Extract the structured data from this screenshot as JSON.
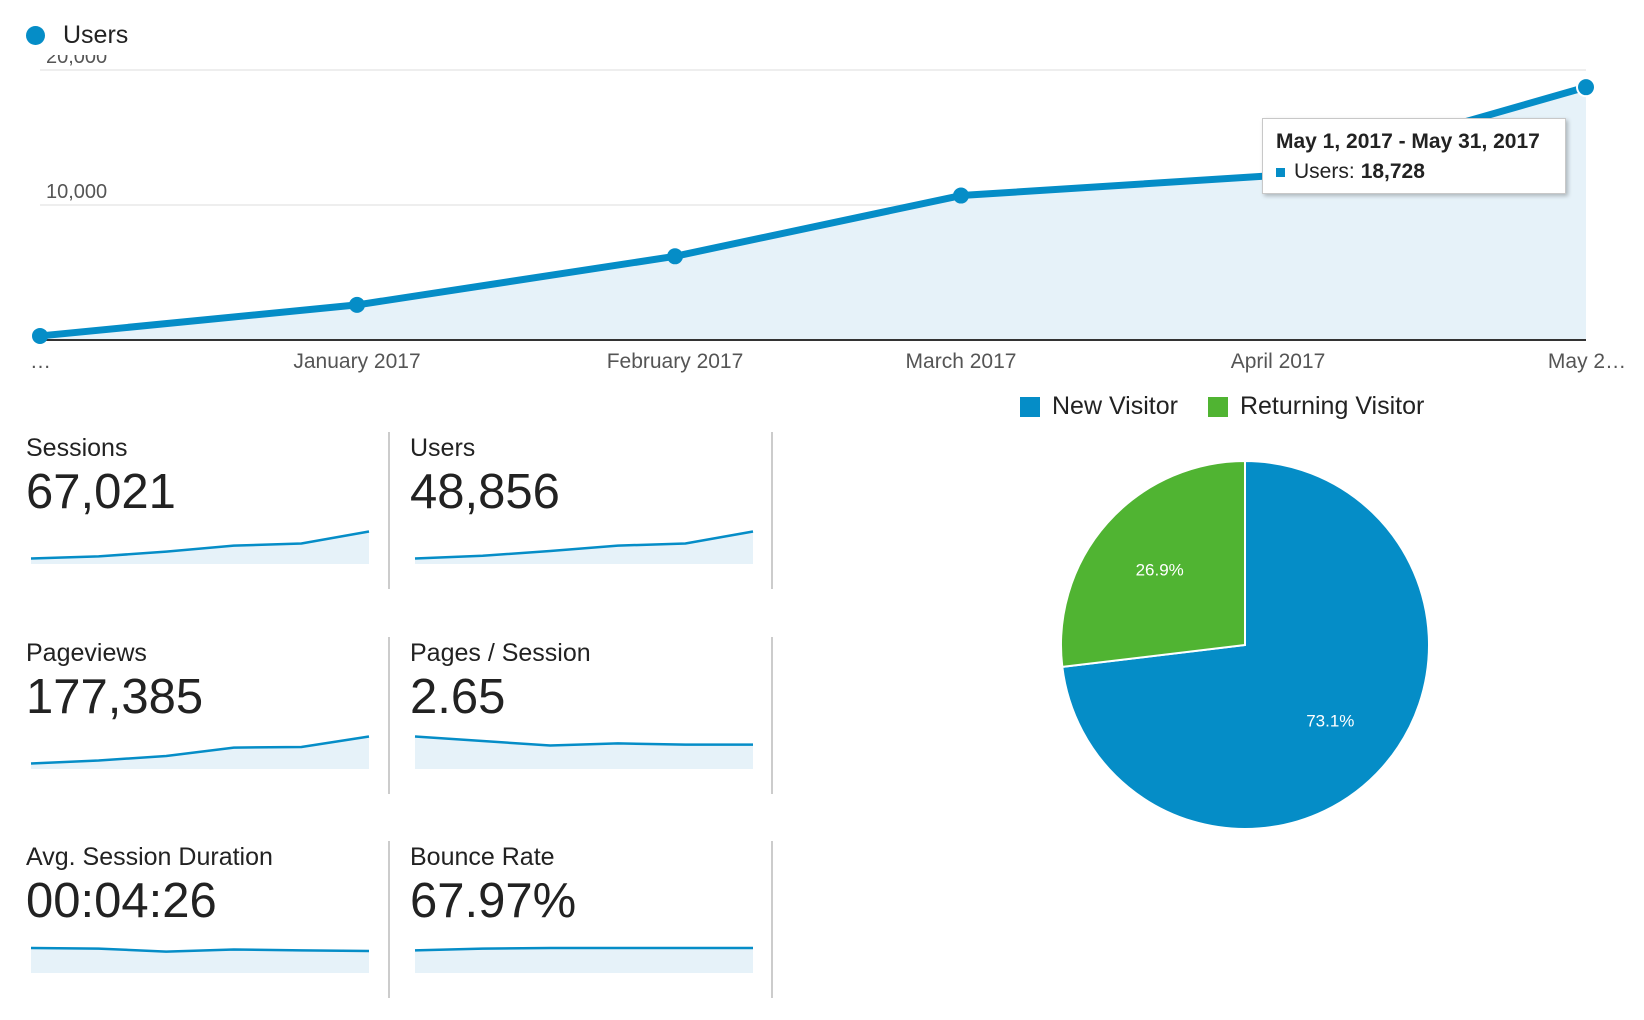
{
  "chart_data": [
    {
      "type": "area",
      "series": [
        {
          "name": "Users",
          "values": [
            300,
            2600,
            6200,
            10700,
            12200,
            18728
          ]
        }
      ],
      "categories": [
        "…",
        "January 2017",
        "February 2017",
        "March 2017",
        "April 2017",
        "May 2…"
      ],
      "y_ticks": [
        "20,000",
        "10,000"
      ],
      "ylim": [
        0,
        20000
      ],
      "grid": true,
      "legend": "top-left",
      "color": "#058dc7",
      "fill": "#e6f2f9",
      "tooltip": {
        "title": "May 1, 2017 - May 31, 2017",
        "series_label": "Users:",
        "value": "18,728"
      }
    },
    {
      "type": "pie",
      "labels": [
        "New Visitor",
        "Returning Visitor"
      ],
      "values": [
        73.1,
        26.9
      ],
      "value_labels": [
        "73.1%",
        "26.9%"
      ],
      "colors": [
        "#058dc7",
        "#50b432"
      ],
      "legend": "top"
    }
  ],
  "metrics": [
    {
      "label": "Sessions",
      "value": "67,021",
      "trend": [
        0.95,
        0.88,
        0.72,
        0.52,
        0.45,
        0.05
      ]
    },
    {
      "label": "Users",
      "value": "48,856",
      "trend": [
        0.95,
        0.86,
        0.7,
        0.52,
        0.45,
        0.05
      ]
    },
    {
      "label": "Pageviews",
      "value": "177,385",
      "trend": [
        0.95,
        0.85,
        0.7,
        0.42,
        0.4,
        0.05
      ]
    },
    {
      "label": "Pages / Session",
      "value": "2.65",
      "trend": [
        0.05,
        0.2,
        0.35,
        0.28,
        0.32,
        0.32
      ]
    },
    {
      "label": "Avg. Session Duration",
      "value": "00:04:26",
      "trend": [
        0.3,
        0.32,
        0.42,
        0.35,
        0.38,
        0.4
      ]
    },
    {
      "label": "Bounce Rate",
      "value": "67.97%",
      "trend": [
        0.38,
        0.32,
        0.3,
        0.3,
        0.3,
        0.3
      ]
    }
  ]
}
